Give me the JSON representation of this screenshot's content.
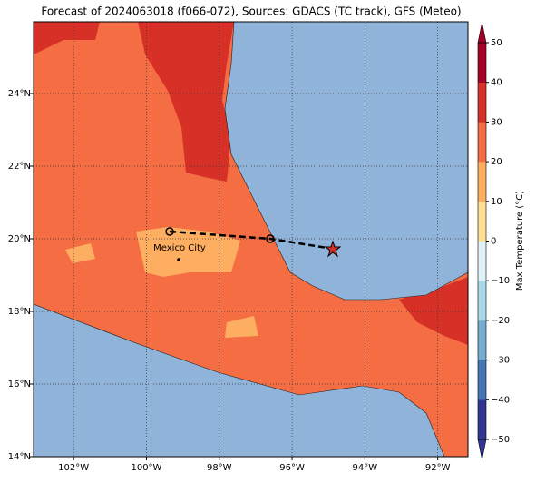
{
  "map": {
    "title": "Forecast of 2024063018 (f066-072), Sources: GDACS (TC track), GFS (Meteo)",
    "lon_range": [
      -103.1,
      -91.17
    ],
    "lat_range": [
      14,
      25.975
    ],
    "lon_ticks": [
      {
        "value": -102,
        "label": "102°W"
      },
      {
        "value": -100,
        "label": "100°W"
      },
      {
        "value": -98,
        "label": "98°W"
      },
      {
        "value": -96,
        "label": "96°W"
      },
      {
        "value": -94,
        "label": "94°W"
      },
      {
        "value": -92,
        "label": "92°W"
      }
    ],
    "lat_ticks": [
      {
        "value": 14,
        "label": "14°N"
      },
      {
        "value": 16,
        "label": "16°N"
      },
      {
        "value": 18,
        "label": "18°N"
      },
      {
        "value": 20,
        "label": "20°N"
      },
      {
        "value": 22,
        "label": "22°N"
      },
      {
        "value": 24,
        "label": "24°N"
      }
    ],
    "city_label": "Mexico City"
  },
  "colorbar": {
    "label": "Max Temperature (°C)",
    "lim": [
      -50,
      50
    ],
    "ticks": [
      {
        "value": -50,
        "label": "−50"
      },
      {
        "value": -40,
        "label": "−40"
      },
      {
        "value": -30,
        "label": "−30"
      },
      {
        "value": -20,
        "label": "−20"
      },
      {
        "value": -10,
        "label": "−10"
      },
      0,
      10,
      20,
      30,
      40,
      50
    ],
    "colors": [
      "#313695",
      "#4575b4",
      "#74add1",
      "#abd9e9",
      "#e0f3f8",
      "#fee090",
      "#fdae61",
      "#f46d43",
      "#d73027",
      "#a50026"
    ]
  }
}
